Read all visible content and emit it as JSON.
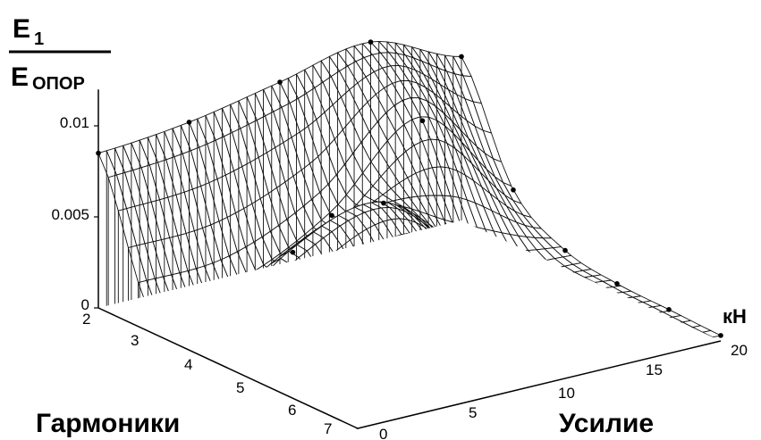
{
  "chart_data": {
    "type": "surface",
    "title": "",
    "z_label": {
      "numerator": "E",
      "numerator_sub": "1",
      "denominator": "E",
      "denominator_sub": "ОПОР"
    },
    "z_ticks": [
      "0",
      "0.005",
      "0.01"
    ],
    "z_range": [
      0,
      0.012
    ],
    "x_axis": {
      "label": "Гармоники",
      "ticks": [
        "2",
        "3",
        "4",
        "5",
        "6",
        "7"
      ],
      "range": [
        2,
        7
      ]
    },
    "y_axis": {
      "label": "Усилие",
      "unit": "кН",
      "ticks": [
        "0",
        "5",
        "10",
        "15",
        "20"
      ],
      "range": [
        0,
        20
      ]
    },
    "grid": false,
    "surface_values": {
      "harmonics": [
        2,
        3,
        4,
        5,
        6,
        7
      ],
      "force_kN": [
        0,
        5,
        10,
        15,
        20
      ],
      "E1_over_Eref": [
        [
          0.0085,
          0.009,
          0.01,
          0.011,
          0.009
        ],
        [
          0.001,
          0.0015,
          0.004,
          0.008,
          0.003
        ],
        [
          0.0005,
          0.0045,
          0.006,
          0.002,
          0.001
        ],
        [
          0.0003,
          0.001,
          0.0035,
          0.0015,
          0.0005
        ],
        [
          0.0002,
          0.0008,
          0.0012,
          0.001,
          0.0004
        ],
        [
          0.0001,
          0.0005,
          0.0008,
          0.0006,
          0.0003
        ]
      ]
    }
  }
}
